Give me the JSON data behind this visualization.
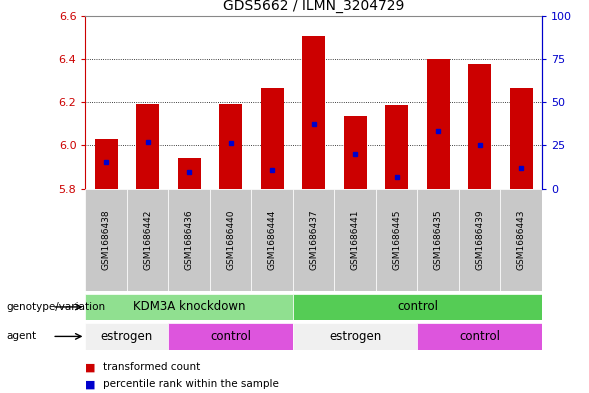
{
  "title": "GDS5662 / ILMN_3204729",
  "samples": [
    "GSM1686438",
    "GSM1686442",
    "GSM1686436",
    "GSM1686440",
    "GSM1686444",
    "GSM1686437",
    "GSM1686441",
    "GSM1686445",
    "GSM1686435",
    "GSM1686439",
    "GSM1686443"
  ],
  "bar_tops": [
    6.03,
    6.19,
    5.94,
    6.19,
    6.265,
    6.505,
    6.135,
    6.185,
    6.4,
    6.375,
    6.265
  ],
  "bar_bottom": 5.8,
  "blue_marker_vals": [
    5.925,
    6.015,
    5.875,
    6.01,
    5.885,
    6.1,
    5.96,
    5.855,
    6.065,
    6.0,
    5.895
  ],
  "ylim_left": [
    5.8,
    6.6
  ],
  "ylim_right": [
    0,
    100
  ],
  "yticks_left": [
    5.8,
    6.0,
    6.2,
    6.4,
    6.6
  ],
  "yticks_right": [
    0,
    25,
    50,
    75,
    100
  ],
  "bar_color": "#cc0000",
  "blue_color": "#0000cc",
  "tick_area_bg": "#c8c8c8",
  "group1_label": "KDM3A knockdown",
  "group2_label": "control",
  "group1_color": "#90e090",
  "group2_color": "#55cc55",
  "agent_labels": [
    "estrogen",
    "control",
    "estrogen",
    "control"
  ],
  "agent_colors": [
    "#f0f0f0",
    "#dd55dd",
    "#f0f0f0",
    "#dd55dd"
  ],
  "genotype_label": "genotype/variation",
  "agent_label": "agent",
  "legend_red": "transformed count",
  "legend_blue": "percentile rank within the sample",
  "bar_width": 0.55,
  "left_label_color": "#cc0000",
  "right_label_color": "#0000cc",
  "fig_width": 5.89,
  "fig_height": 3.93,
  "dpi": 100,
  "group1_samples": 5,
  "group2_samples": 6,
  "agent1_samples": 2,
  "agent2_samples": 3,
  "agent3_samples": 3,
  "agent4_samples": 3
}
